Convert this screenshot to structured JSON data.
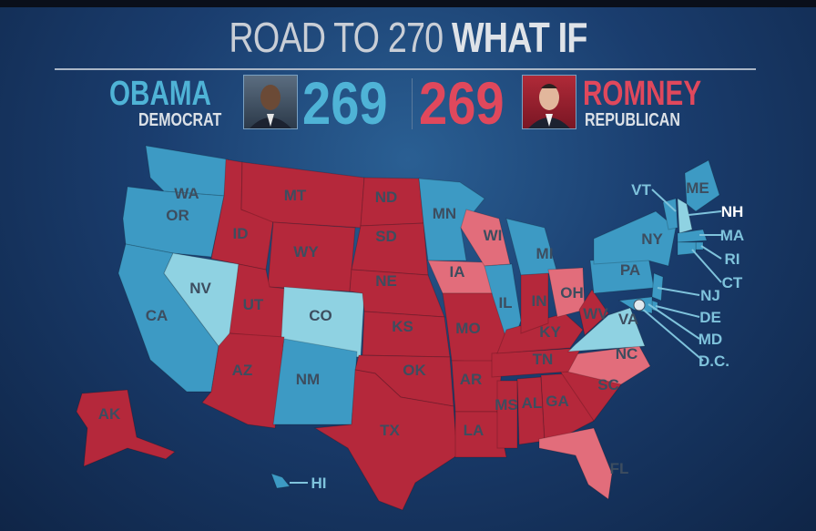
{
  "header": {
    "title_light": "ROAD TO 270",
    "title_bold": "WHAT IF"
  },
  "democrat": {
    "name": "OBAMA",
    "party": "DEMOCRAT",
    "votes": "269",
    "color": "#4fb3d6"
  },
  "republican": {
    "name": "ROMNEY",
    "party": "REPUBLICAN",
    "votes": "269",
    "color": "#e0485c"
  },
  "legend_colors": {
    "safe_dem": "#3d9ac4",
    "lean_dem": "#8fd2e2",
    "safe_rep": "#b5283b",
    "lean_rep": "#e26d7b"
  },
  "states": [
    {
      "abbr": "WA",
      "status": "safe_dem"
    },
    {
      "abbr": "OR",
      "status": "safe_dem"
    },
    {
      "abbr": "CA",
      "status": "safe_dem"
    },
    {
      "abbr": "NV",
      "status": "lean_dem"
    },
    {
      "abbr": "ID",
      "status": "safe_rep"
    },
    {
      "abbr": "MT",
      "status": "safe_rep"
    },
    {
      "abbr": "WY",
      "status": "safe_rep"
    },
    {
      "abbr": "UT",
      "status": "safe_rep"
    },
    {
      "abbr": "CO",
      "status": "lean_dem"
    },
    {
      "abbr": "AZ",
      "status": "safe_rep"
    },
    {
      "abbr": "NM",
      "status": "safe_dem"
    },
    {
      "abbr": "ND",
      "status": "safe_rep"
    },
    {
      "abbr": "SD",
      "status": "safe_rep"
    },
    {
      "abbr": "NE",
      "status": "safe_rep"
    },
    {
      "abbr": "KS",
      "status": "safe_rep"
    },
    {
      "abbr": "OK",
      "status": "safe_rep"
    },
    {
      "abbr": "TX",
      "status": "safe_rep"
    },
    {
      "abbr": "MN",
      "status": "safe_dem"
    },
    {
      "abbr": "IA",
      "status": "lean_rep"
    },
    {
      "abbr": "WI",
      "status": "lean_rep"
    },
    {
      "abbr": "MI",
      "status": "safe_dem"
    },
    {
      "abbr": "IL",
      "status": "safe_dem"
    },
    {
      "abbr": "MO",
      "status": "safe_rep"
    },
    {
      "abbr": "AR",
      "status": "safe_rep"
    },
    {
      "abbr": "LA",
      "status": "safe_rep"
    },
    {
      "abbr": "MS",
      "status": "safe_rep"
    },
    {
      "abbr": "AL",
      "status": "safe_rep"
    },
    {
      "abbr": "GA",
      "status": "safe_rep"
    },
    {
      "abbr": "FL",
      "status": "lean_rep"
    },
    {
      "abbr": "SC",
      "status": "safe_rep"
    },
    {
      "abbr": "NC",
      "status": "lean_rep"
    },
    {
      "abbr": "TN",
      "status": "safe_rep"
    },
    {
      "abbr": "KY",
      "status": "safe_rep"
    },
    {
      "abbr": "IN",
      "status": "safe_rep"
    },
    {
      "abbr": "OH",
      "status": "lean_rep"
    },
    {
      "abbr": "WV",
      "status": "safe_rep"
    },
    {
      "abbr": "VA",
      "status": "lean_dem"
    },
    {
      "abbr": "PA",
      "status": "safe_dem"
    },
    {
      "abbr": "NY",
      "status": "safe_dem"
    },
    {
      "abbr": "ME",
      "status": "safe_dem"
    },
    {
      "abbr": "VT",
      "status": "safe_dem"
    },
    {
      "abbr": "NH",
      "status": "lean_dem"
    },
    {
      "abbr": "MA",
      "status": "safe_dem"
    },
    {
      "abbr": "RI",
      "status": "safe_dem"
    },
    {
      "abbr": "CT",
      "status": "safe_dem"
    },
    {
      "abbr": "NJ",
      "status": "safe_dem"
    },
    {
      "abbr": "DE",
      "status": "safe_dem"
    },
    {
      "abbr": "MD",
      "status": "safe_dem"
    },
    {
      "abbr": "D.C.",
      "status": "safe_dem"
    },
    {
      "abbr": "AK",
      "status": "safe_rep"
    },
    {
      "abbr": "HI",
      "status": "safe_dem"
    }
  ]
}
